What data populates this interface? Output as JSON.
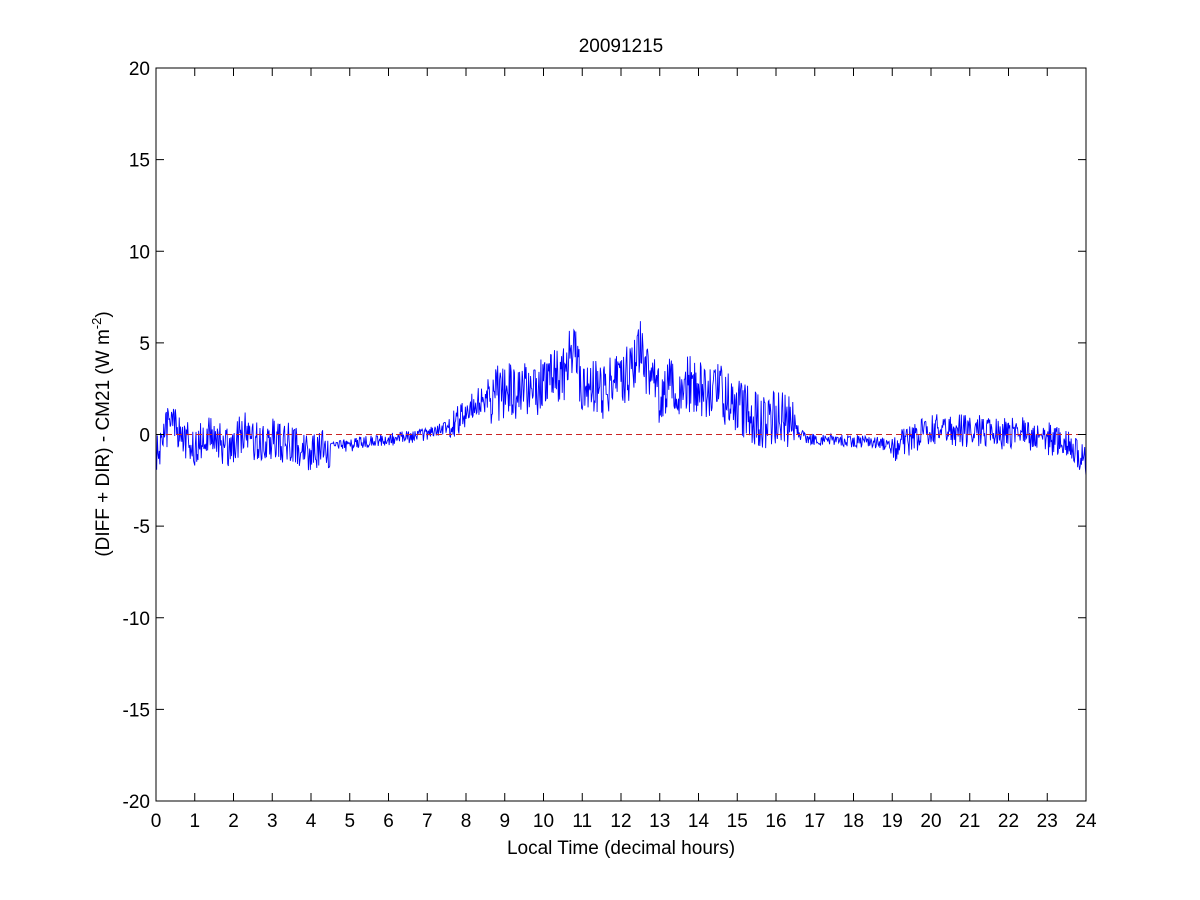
{
  "chart_data": {
    "type": "line",
    "title": "20091215",
    "xlabel": "Local Time (decimal hours)",
    "ylabel": {
      "prefix": "(DIFF + DIR) - CM21 (W m",
      "superscript": "-2",
      "suffix": ")"
    },
    "xlim": [
      0,
      24
    ],
    "ylim": [
      -20,
      20
    ],
    "xticks": [
      0,
      1,
      2,
      3,
      4,
      5,
      6,
      7,
      8,
      9,
      10,
      11,
      12,
      13,
      14,
      15,
      16,
      17,
      18,
      19,
      20,
      21,
      22,
      23,
      24
    ],
    "yticks": [
      -20,
      -15,
      -10,
      -5,
      0,
      5,
      10,
      15,
      20
    ],
    "grid": false,
    "legend": "none",
    "reference_line": {
      "y": 0,
      "style": "dashed",
      "color": "#cc2222"
    },
    "series": [
      {
        "color": "#0000ff",
        "x": [
          0,
          0.25,
          0.5,
          0.75,
          1,
          1.25,
          1.5,
          1.75,
          2,
          2.25,
          2.5,
          2.75,
          3,
          3.25,
          3.5,
          3.75,
          4,
          4.25,
          4.5,
          4.75,
          5,
          5.25,
          5.5,
          5.75,
          6,
          6.25,
          6.5,
          6.75,
          7,
          7.25,
          7.5,
          7.75,
          8,
          8.25,
          8.5,
          8.75,
          9,
          9.25,
          9.5,
          9.75,
          10,
          10.25,
          10.5,
          10.75,
          11,
          11.25,
          11.5,
          11.75,
          12,
          12.25,
          12.5,
          12.75,
          13,
          13.25,
          13.5,
          13.75,
          14,
          14.25,
          14.5,
          14.75,
          15,
          15.25,
          15.5,
          15.75,
          16,
          16.25,
          16.5,
          16.75,
          17,
          17.25,
          17.5,
          17.75,
          18,
          18.25,
          18.5,
          18.75,
          19,
          19.25,
          19.5,
          19.75,
          20,
          20.25,
          20.5,
          20.75,
          21,
          21.25,
          21.5,
          21.75,
          22,
          22.25,
          22.5,
          22.75,
          23,
          23.25,
          23.5,
          23.75,
          24
        ],
        "y": [
          -1.2,
          0.3,
          0.5,
          -0.2,
          -0.6,
          -0.3,
          0.2,
          -0.8,
          -0.5,
          0.2,
          -0.3,
          -0.5,
          -0.2,
          -0.5,
          -0.4,
          -0.7,
          -0.9,
          -0.8,
          -0.7,
          -0.6,
          -0.6,
          -0.5,
          -0.4,
          -0.3,
          -0.3,
          -0.2,
          -0.15,
          -0.1,
          0,
          0.2,
          0.4,
          0.7,
          1.2,
          1.7,
          2.0,
          2.2,
          2.5,
          2.3,
          2.5,
          2.6,
          2.7,
          3.0,
          3.2,
          4.8,
          2.5,
          2.6,
          2.3,
          2.8,
          3.0,
          3.4,
          5.0,
          2.8,
          2.2,
          2.6,
          2.4,
          2.8,
          2.7,
          2.1,
          2.3,
          1.9,
          1.6,
          1.2,
          0.8,
          0.7,
          0.8,
          0.9,
          0.3,
          -0.2,
          -0.25,
          -0.3,
          -0.3,
          -0.3,
          -0.4,
          -0.35,
          -0.4,
          -0.5,
          -0.8,
          -0.6,
          -0.3,
          0.1,
          0.3,
          0.4,
          0.2,
          0.3,
          0.1,
          0.2,
          0.3,
          0.0,
          0.1,
          0.2,
          -0.1,
          0.0,
          -0.2,
          -0.4,
          -0.6,
          -1.0,
          -1.4
        ]
      }
    ]
  }
}
